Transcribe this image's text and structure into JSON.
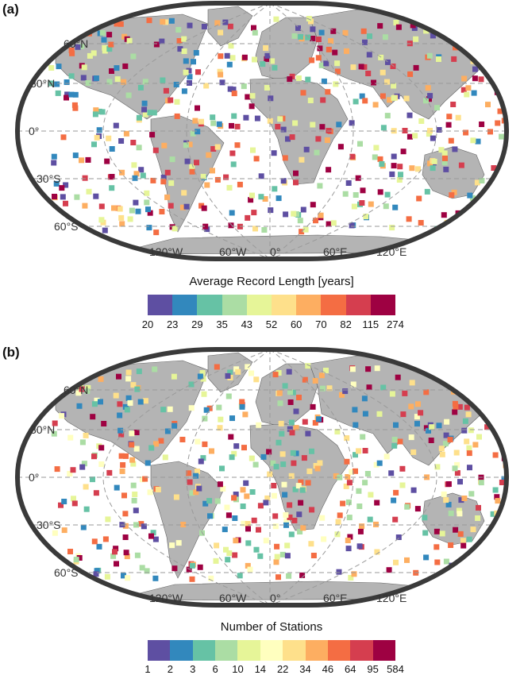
{
  "panels": [
    {
      "label": "(a)",
      "colorbar": {
        "title": "Average Record Length [years]",
        "ticks": [
          "20",
          "23",
          "29",
          "35",
          "43",
          "52",
          "60",
          "70",
          "82",
          "115",
          "274"
        ],
        "colors": [
          "#5e4fa2",
          "#3288bd",
          "#66c2a5",
          "#abdda4",
          "#e6f598",
          "#fee08b",
          "#fdae61",
          "#f46d43",
          "#d53e4f",
          "#9e0142"
        ]
      }
    },
    {
      "label": "(b)",
      "colorbar": {
        "title": "Number of Stations",
        "ticks": [
          "1",
          "2",
          "3",
          "6",
          "10",
          "14",
          "22",
          "34",
          "46",
          "64",
          "95",
          "584"
        ],
        "colors": [
          "#5e4fa2",
          "#3288bd",
          "#66c2a5",
          "#abdda4",
          "#e6f598",
          "#ffffbf",
          "#fee08b",
          "#fdae61",
          "#f46d43",
          "#d53e4f",
          "#9e0142"
        ]
      }
    }
  ],
  "lat_labels": [
    "60°N",
    "30°N",
    "0°",
    "30°S",
    "60°S"
  ],
  "lon_labels": [
    "120°W",
    "60°W",
    "0°",
    "60°E",
    "120°E"
  ]
}
